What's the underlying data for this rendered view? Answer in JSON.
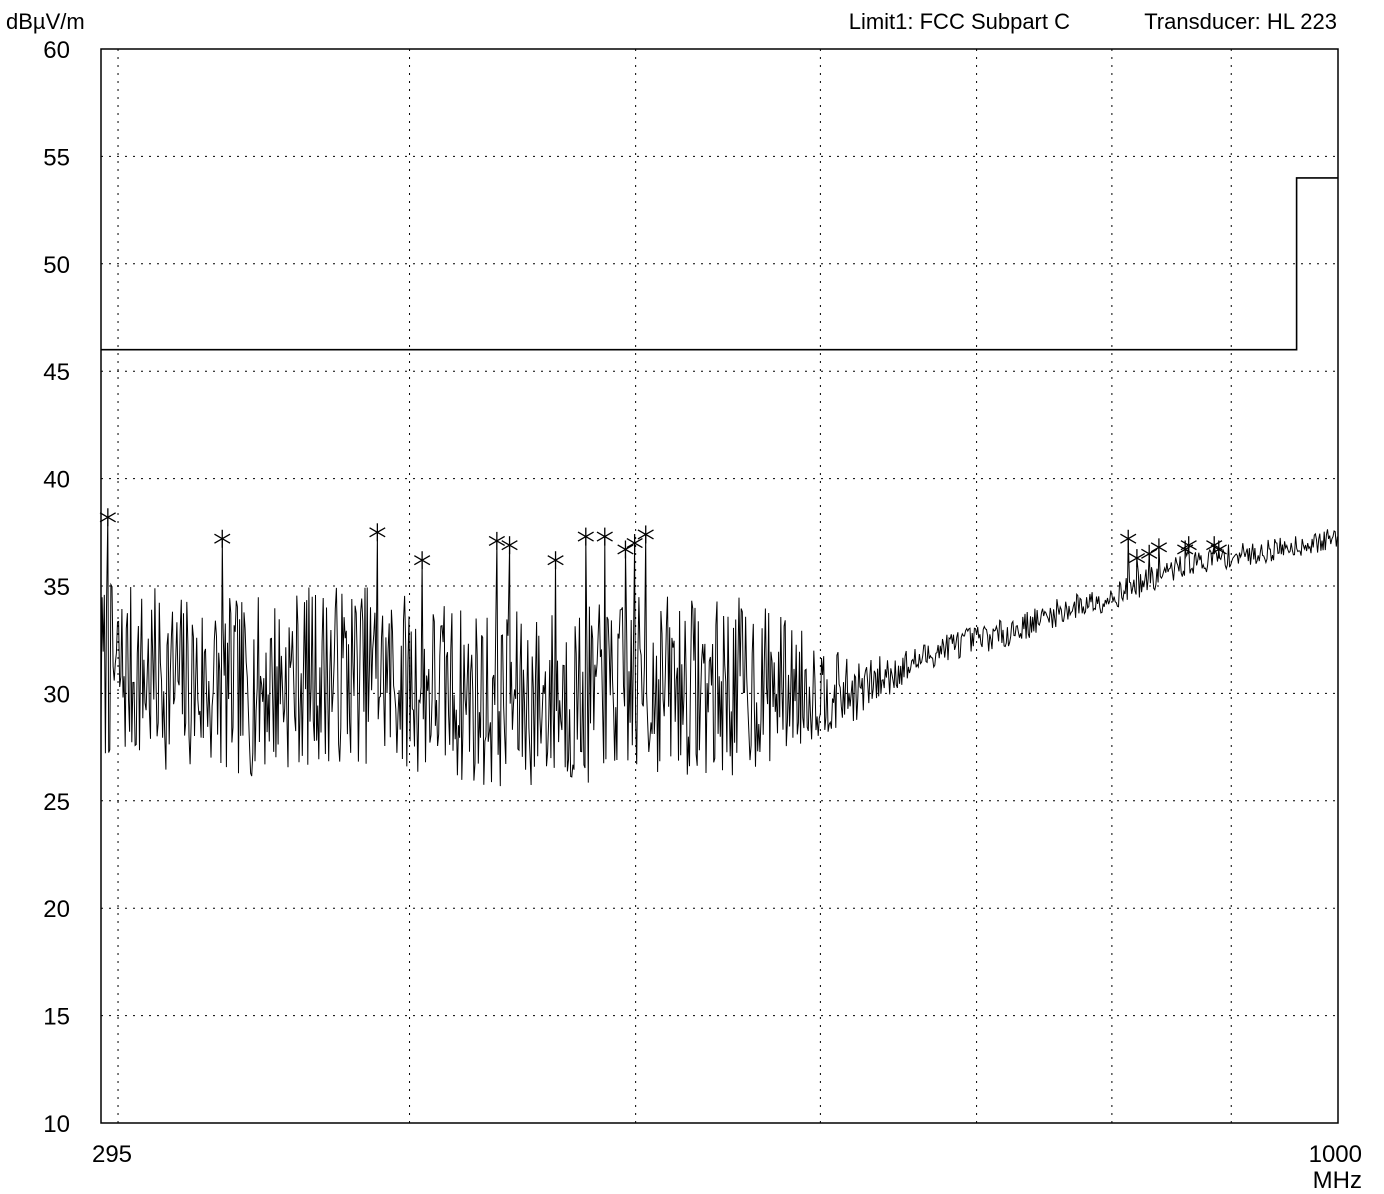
{
  "header": {
    "y_unit": "dBµV/m",
    "limit_label": "Limit1: FCC Subpart C",
    "transducer_label": "Transducer: HL 223"
  },
  "chart_data": {
    "type": "line",
    "title": "",
    "xlabel": "MHz",
    "ylabel": "dBµV/m",
    "x_scale": "log",
    "xlim": [
      295,
      1000
    ],
    "ylim": [
      10,
      60
    ],
    "x_tick_labels": [
      "295",
      "1000"
    ],
    "y_ticks": [
      10,
      15,
      20,
      25,
      30,
      35,
      40,
      45,
      50,
      55,
      60
    ],
    "grid": true,
    "grid_style": "dotted",
    "colors": {
      "trace": "#000000",
      "limit": "#000000",
      "grid": "#000000",
      "frame": "#000000"
    },
    "limit_line": {
      "name": "Limit1: FCC Subpart C",
      "x": [
        295,
        960,
        960,
        1000
      ],
      "y": [
        46.0,
        46.0,
        54.0,
        54.0
      ]
    },
    "trace": {
      "seed": 7,
      "baseline": {
        "x": [
          295,
          300,
          320,
          340,
          360,
          380,
          400,
          420,
          440,
          460,
          480,
          500,
          520,
          540,
          560,
          580,
          600,
          620,
          640,
          660,
          680,
          700,
          720,
          740,
          760,
          780,
          800,
          820,
          840,
          860,
          880,
          900,
          920,
          940,
          960,
          980,
          1000
        ],
        "y": [
          31.0,
          31.0,
          30.5,
          30.2,
          30.8,
          31.0,
          30.5,
          30.0,
          29.6,
          29.8,
          29.9,
          30.3,
          30.5,
          30.2,
          30.4,
          30.4,
          30.2,
          30.0,
          30.8,
          31.5,
          32.2,
          32.5,
          32.8,
          33.3,
          33.8,
          34.2,
          34.5,
          35.0,
          35.5,
          36.0,
          36.2,
          36.4,
          36.5,
          36.7,
          36.9,
          37.0,
          37.3
        ]
      },
      "noise_amplitude": {
        "x": [
          295,
          560,
          580,
          620,
          660,
          1000
        ],
        "y": [
          4.2,
          4.2,
          3.2,
          1.4,
          0.7,
          0.5
        ]
      }
    },
    "peaks": [
      {
        "x": 297.0,
        "y": 38.2
      },
      {
        "x": 332.5,
        "y": 37.2
      },
      {
        "x": 387.5,
        "y": 37.5
      },
      {
        "x": 405.0,
        "y": 36.2
      },
      {
        "x": 436.0,
        "y": 37.1
      },
      {
        "x": 441.5,
        "y": 36.9
      },
      {
        "x": 462.0,
        "y": 36.2
      },
      {
        "x": 476.0,
        "y": 37.3
      },
      {
        "x": 485.0,
        "y": 37.3
      },
      {
        "x": 495.0,
        "y": 36.7
      },
      {
        "x": 499.5,
        "y": 37.0
      },
      {
        "x": 505.0,
        "y": 37.4
      },
      {
        "x": 813.0,
        "y": 37.2
      },
      {
        "x": 820.0,
        "y": 36.3
      },
      {
        "x": 830.0,
        "y": 36.5
      },
      {
        "x": 838.0,
        "y": 36.8
      },
      {
        "x": 860.0,
        "y": 36.7
      },
      {
        "x": 863.0,
        "y": 36.9
      },
      {
        "x": 885.0,
        "y": 36.9
      },
      {
        "x": 889.0,
        "y": 36.7
      }
    ],
    "x_grid": [
      300,
      400,
      500,
      600,
      700,
      800,
      900
    ],
    "y_grid": [
      15,
      20,
      25,
      30,
      35,
      40,
      45,
      50,
      55
    ]
  }
}
